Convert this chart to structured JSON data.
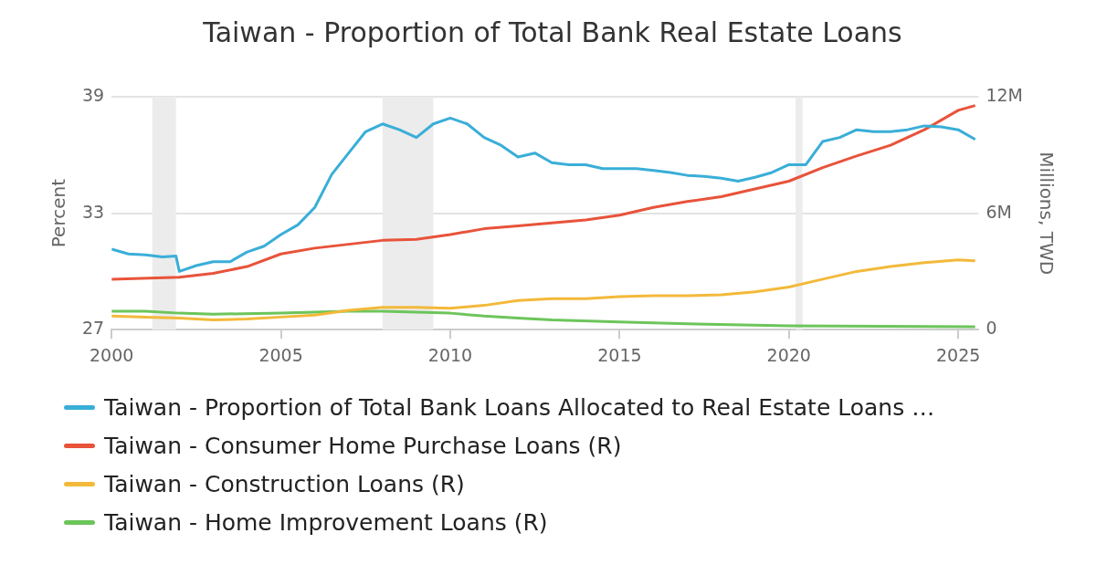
{
  "chart_data": {
    "type": "line",
    "title": "Taiwan - Proportion of Total Bank Real Estate Loans",
    "ylabel": "Percent",
    "y2label": "Millions, TWD",
    "xlim": [
      2000,
      2025.6
    ],
    "xticks": [
      2000,
      2005,
      2010,
      2015,
      2020,
      2025
    ],
    "ylim": [
      27,
      39
    ],
    "yticks": [
      27,
      33,
      39
    ],
    "y2lim": [
      0,
      12
    ],
    "y2ticks": [
      {
        "value": 0,
        "label": "0"
      },
      {
        "value": 6,
        "label": "6M"
      },
      {
        "value": 12,
        "label": "12M"
      }
    ],
    "grid": "y",
    "legend": "bottom",
    "marker": "none",
    "line_style": "solid",
    "bands": [
      {
        "axis": "x",
        "from": 2001.2,
        "to": 2001.9,
        "color": "#ececec"
      },
      {
        "axis": "x",
        "from": 2008.0,
        "to": 2009.5,
        "color": "#ececec"
      },
      {
        "axis": "x",
        "from": 2020.2,
        "to": 2020.4,
        "color": "#ececec"
      }
    ],
    "series": [
      {
        "name": "Taiwan - Proportion of Total Bank Loans Allocated to Real Estate Loans …",
        "color": "#3aaed8",
        "x": [
          2000,
          2000.5,
          2001,
          2001.5,
          2001.9,
          2002,
          2002.5,
          2003,
          2003.5,
          2004,
          2004.5,
          2005,
          2005.5,
          2006,
          2006.5,
          2007,
          2007.5,
          2008,
          2008.5,
          2009,
          2009.5,
          2010,
          2010.5,
          2011,
          2011.5,
          2012,
          2012.5,
          2013,
          2013.5,
          2014,
          2014.5,
          2015,
          2015.5,
          2016,
          2016.5,
          2017,
          2017.5,
          2018,
          2018.5,
          2019,
          2019.5,
          2020,
          2020.5,
          2021,
          2021.5,
          2022,
          2022.5,
          2023,
          2023.5,
          2024,
          2024.5,
          2025,
          2025.5
        ],
        "values": [
          31.15,
          30.9,
          30.85,
          30.75,
          30.8,
          30.0,
          30.3,
          30.5,
          30.5,
          31.0,
          31.3,
          31.9,
          32.4,
          33.3,
          35.0,
          36.1,
          37.2,
          37.6,
          37.3,
          36.9,
          37.6,
          37.9,
          37.6,
          36.9,
          36.5,
          35.9,
          36.1,
          35.6,
          35.5,
          35.5,
          35.3,
          35.3,
          35.3,
          35.2,
          35.1,
          34.95,
          34.9,
          34.8,
          34.65,
          34.85,
          35.1,
          35.5,
          35.5,
          36.7,
          36.9,
          37.3,
          37.2,
          37.2,
          37.3,
          37.5,
          37.45,
          37.3,
          36.8
        ]
      },
      {
        "name": "Taiwan - Consumer Home Purchase Loans (R)",
        "color": "#e8533a",
        "axis": "y2",
        "x": [
          2000,
          2002,
          2003,
          2004,
          2005,
          2006,
          2007,
          2008,
          2009,
          2010,
          2011,
          2012,
          2013,
          2014,
          2015,
          2016,
          2017,
          2018,
          2019,
          2020,
          2021,
          2022,
          2023,
          2024,
          2025,
          2025.5
        ],
        "values": [
          2.6,
          2.7,
          2.9,
          3.25,
          3.9,
          4.2,
          4.4,
          4.6,
          4.65,
          4.9,
          5.2,
          5.35,
          5.5,
          5.65,
          5.9,
          6.3,
          6.6,
          6.85,
          7.25,
          7.65,
          8.35,
          8.95,
          9.5,
          10.3,
          11.3,
          11.55
        ]
      },
      {
        "name": "Taiwan - Construction Loans (R)",
        "color": "#f3b93a",
        "axis": "y2",
        "x": [
          2000,
          2001,
          2002,
          2003,
          2004,
          2005,
          2006,
          2007,
          2008,
          2009,
          2010,
          2011,
          2012,
          2013,
          2014,
          2015,
          2016,
          2017,
          2018,
          2019,
          2020,
          2021,
          2022,
          2023,
          2024,
          2025,
          2025.5
        ],
        "values": [
          0.7,
          0.65,
          0.6,
          0.5,
          0.55,
          0.65,
          0.75,
          1.0,
          1.15,
          1.15,
          1.1,
          1.25,
          1.5,
          1.6,
          1.6,
          1.7,
          1.75,
          1.75,
          1.8,
          1.95,
          2.2,
          2.6,
          3.0,
          3.25,
          3.45,
          3.6,
          3.55
        ]
      },
      {
        "name": "Taiwan - Home Improvement Loans (R)",
        "color": "#6cc55a",
        "axis": "y2",
        "x": [
          2000,
          2001,
          2002,
          2003,
          2005,
          2007,
          2008,
          2009,
          2010,
          2011,
          2012,
          2013,
          2015,
          2017,
          2020,
          2025.5
        ],
        "values": [
          0.95,
          0.95,
          0.85,
          0.8,
          0.85,
          0.95,
          0.95,
          0.9,
          0.85,
          0.7,
          0.6,
          0.5,
          0.4,
          0.3,
          0.2,
          0.15
        ]
      }
    ]
  }
}
